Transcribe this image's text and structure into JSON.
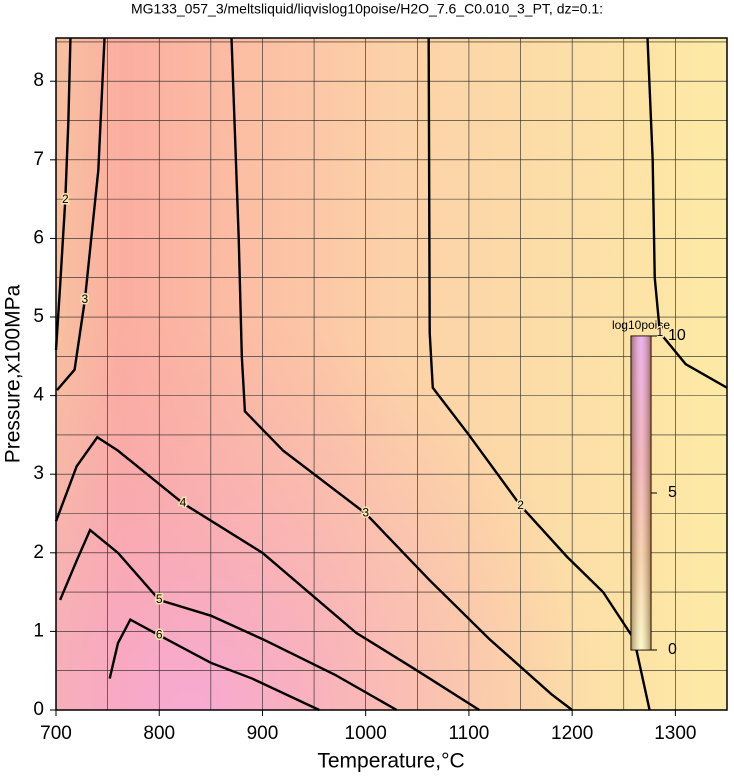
{
  "chart_data": {
    "type": "contour",
    "title": "MG133_057_3/meltsliquid/liqvislog10poise/H2O_7.6_C0.010_3_PT, dz=0.1:",
    "xlabel": "Temperature,°C",
    "ylabel": "Pressure,x100MPa",
    "xlim": [
      700,
      1350
    ],
    "ylim": [
      0,
      8.55
    ],
    "xticks": [
      700,
      800,
      900,
      1000,
      1100,
      1200,
      1300
    ],
    "yticks": [
      0,
      1,
      2,
      3,
      4,
      5,
      6,
      7,
      8
    ],
    "xminorticks": [
      750,
      850,
      950,
      1050,
      1150,
      1250,
      1350
    ],
    "yminorticks": [
      0.5,
      1.5,
      2.5,
      3.5,
      4.5,
      5.5,
      6.5,
      7.5,
      8.5
    ],
    "grid": true,
    "contours": [
      {
        "level": 1,
        "x": [
          1273,
          1278,
          1280,
          1285,
          1310,
          1350
        ],
        "y": [
          8.55,
          7,
          5.5,
          4.8,
          4.4,
          4.1
        ]
      },
      {
        "level": 2,
        "x": [
          1061,
          1062,
          1065,
          1100,
          1150,
          1195,
          1230,
          1260,
          1275
        ],
        "y": [
          8.55,
          4.8,
          4.1,
          3.5,
          2.6,
          1.95,
          1.5,
          0.9,
          0
        ]
      },
      {
        "level": 2,
        "x": [
          714,
          712,
          709,
          704,
          700
        ],
        "y": [
          8.55,
          7.5,
          6.49,
          5.4,
          4.58
        ]
      },
      {
        "level": 3,
        "x": [
          870,
          877,
          880,
          883,
          920,
          1000,
          1062,
          1120,
          1180,
          1200
        ],
        "y": [
          8.55,
          6,
          4.5,
          3.8,
          3.3,
          2.5,
          1.65,
          0.9,
          0.2,
          0
        ]
      },
      {
        "level": 3,
        "x": [
          747,
          741,
          728,
          718,
          701
        ],
        "y": [
          8.55,
          6.87,
          5.22,
          4.33,
          4.07
        ]
      },
      {
        "level": 4,
        "x": [
          700,
          720,
          740,
          760,
          823,
          900,
          991,
          1050,
          1110
        ],
        "y": [
          2.4,
          3.1,
          3.47,
          3.3,
          2.63,
          2.0,
          0.98,
          0.5,
          0
        ]
      },
      {
        "level": 5,
        "x": [
          704,
          720,
          733,
          760,
          800,
          850,
          902,
          970,
          1030
        ],
        "y": [
          1.4,
          1.9,
          2.29,
          2.0,
          1.4,
          1.2,
          0.89,
          0.45,
          0
        ]
      },
      {
        "level": 6,
        "x": [
          752,
          760,
          772,
          800,
          850,
          890,
          955
        ],
        "y": [
          0.4,
          0.85,
          1.15,
          0.95,
          0.6,
          0.4,
          0
        ]
      }
    ],
    "colorbar": {
      "label": "log10poise",
      "lim": [
        0,
        10
      ],
      "ticks": [
        0,
        5,
        10
      ]
    }
  }
}
